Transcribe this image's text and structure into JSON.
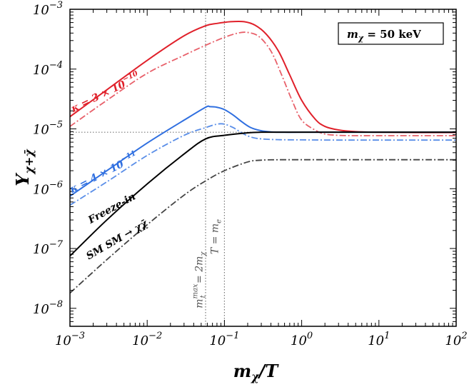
{
  "chart_data": {
    "type": "line",
    "xscale": "log",
    "yscale": "log",
    "xlim": [
      0.001,
      100
    ],
    "ylim": [
      5e-09,
      0.001
    ],
    "xlabel": "m_χ/T",
    "ylabel": "Y_{χ+χ̄}",
    "x_ticks": [
      {
        "value": 0.001,
        "base": "10",
        "exp": "−3"
      },
      {
        "value": 0.01,
        "base": "10",
        "exp": "−2"
      },
      {
        "value": 0.1,
        "base": "10",
        "exp": "−1"
      },
      {
        "value": 1,
        "base": "10",
        "exp": "0"
      },
      {
        "value": 10,
        "base": "10",
        "exp": "1"
      },
      {
        "value": 100,
        "base": "10",
        "exp": "2"
      }
    ],
    "y_ticks": [
      {
        "value": 1e-08,
        "base": "10",
        "exp": "−8"
      },
      {
        "value": 1e-07,
        "base": "10",
        "exp": "−7"
      },
      {
        "value": 1e-06,
        "base": "10",
        "exp": "−6"
      },
      {
        "value": 1e-05,
        "base": "10",
        "exp": "−5"
      },
      {
        "value": 0.0001,
        "base": "10",
        "exp": "−4"
      },
      {
        "value": 0.001,
        "base": "10",
        "exp": "−3"
      }
    ],
    "series": [
      {
        "name": "kappa-3e-10-solid",
        "color": "#e0202a",
        "dash": "solid",
        "x": [
          0.001,
          0.003,
          0.01,
          0.03,
          0.057,
          0.08,
          0.12,
          0.18,
          0.25,
          0.35,
          0.5,
          0.7,
          1.0,
          1.5,
          2.0,
          3.0,
          5.0,
          10,
          30,
          100
        ],
        "y": [
          1.6e-05,
          4.5e-05,
          0.00014,
          0.00036,
          0.00053,
          0.00058,
          0.00062,
          0.00062,
          0.00054,
          0.00038,
          0.0002,
          8e-05,
          3e-05,
          1.45e-05,
          1.1e-05,
          9.6e-06,
          9e-06,
          8.8e-06,
          8.7e-06,
          8.7e-06
        ]
      },
      {
        "name": "kappa-3e-10-dashdot",
        "color": "#e8606a",
        "dash": "dashdot",
        "x": [
          0.001,
          0.003,
          0.01,
          0.03,
          0.057,
          0.1,
          0.15,
          0.2,
          0.28,
          0.4,
          0.55,
          0.75,
          1.0,
          1.5,
          2.0,
          3.0,
          5.0,
          10,
          100
        ],
        "y": [
          1.1e-05,
          3e-05,
          8.5e-05,
          0.00017,
          0.00025,
          0.00034,
          0.0004,
          0.00041,
          0.00035,
          0.0002,
          8e-05,
          3e-05,
          1.4e-05,
          9.5e-06,
          8.2e-06,
          7.8e-06,
          7.7e-06,
          7.7e-06,
          7.7e-06
        ]
      },
      {
        "name": "kappa-4e-11-solid",
        "color": "#2f6fe0",
        "dash": "solid",
        "x": [
          0.001,
          0.003,
          0.01,
          0.03,
          0.057,
          0.065,
          0.08,
          0.1,
          0.13,
          0.17,
          0.22,
          0.3,
          0.4,
          0.6,
          1.0,
          3.0,
          10,
          100
        ],
        "y": [
          7.5e-07,
          2e-06,
          5.8e-06,
          1.4e-05,
          2.3e-05,
          2.35e-05,
          2.3e-05,
          2.1e-05,
          1.7e-05,
          1.3e-05,
          1.05e-05,
          9.3e-06,
          8.9e-06,
          8.8e-06,
          8.8e-06,
          8.8e-06,
          8.8e-06,
          8.8e-06
        ]
      },
      {
        "name": "kappa-4e-11-dashdot",
        "color": "#5a8ee8",
        "dash": "dashdot",
        "x": [
          0.001,
          0.003,
          0.01,
          0.03,
          0.057,
          0.08,
          0.1,
          0.13,
          0.17,
          0.22,
          0.3,
          0.5,
          1.0,
          3.0,
          10,
          100
        ],
        "y": [
          5.3e-07,
          1.3e-06,
          3.6e-06,
          7.8e-06,
          1.05e-05,
          1.2e-05,
          1.2e-05,
          1.05e-05,
          8.5e-06,
          7.3e-06,
          6.8e-06,
          6.6e-06,
          6.55e-06,
          6.5e-06,
          6.5e-06,
          6.5e-06
        ]
      },
      {
        "name": "freeze-in-solid",
        "color": "#000000",
        "dash": "solid",
        "x": [
          0.001,
          0.003,
          0.01,
          0.03,
          0.057,
          0.1,
          0.2,
          0.3,
          0.5,
          1.0,
          3.0,
          10,
          100
        ],
        "y": [
          7.5e-08,
          3e-07,
          1.2e-06,
          3.8e-06,
          6.8e-06,
          7.8e-06,
          8.6e-06,
          8.8e-06,
          8.8e-06,
          8.8e-06,
          8.8e-06,
          8.8e-06,
          8.8e-06
        ]
      },
      {
        "name": "sm-sm-dashdot",
        "color": "#444444",
        "dash": "dashdot",
        "x": [
          0.001,
          0.003,
          0.01,
          0.03,
          0.057,
          0.1,
          0.2,
          0.3,
          0.5,
          1.0,
          3.0,
          10,
          100
        ],
        "y": [
          1.8e-08,
          6.5e-08,
          2.5e-07,
          7.8e-07,
          1.35e-06,
          2e-06,
          2.8e-06,
          3e-06,
          3.05e-06,
          3.05e-06,
          3.05e-06,
          3.05e-06,
          3.05e-06
        ]
      }
    ],
    "reference_lines": [
      {
        "name": "y-observed",
        "orientation": "horizontal",
        "value": 8.8e-06,
        "color": "#777777"
      },
      {
        "name": "mt-max",
        "orientation": "vertical",
        "value": 0.057,
        "color": "#777777"
      },
      {
        "name": "t-me",
        "orientation": "vertical",
        "value": 0.1,
        "color": "#777777"
      }
    ],
    "annotations": [
      {
        "name": "kappa-3e-10-label",
        "text_main": "κ = 3 × 10",
        "text_exp": "−10",
        "color": "#e0202a",
        "x": 0.0011,
        "y": 1.9e-05,
        "angle": -26
      },
      {
        "name": "kappa-4e-11-label",
        "text_main": "κ = 4 × 10",
        "text_exp": "−11",
        "color": "#2f6fe0",
        "x": 0.00106,
        "y": 8.5e-07,
        "angle": -27
      },
      {
        "name": "freeze-in-label",
        "text_main": "Freeze-in",
        "text_exp": "",
        "color": "#000000",
        "x": 0.00185,
        "y": 2.6e-07,
        "angle": -29
      },
      {
        "name": "sm-sm-label",
        "text_main": "SM SM → χχ̄",
        "text_exp": "",
        "color": "#000000",
        "x": 0.00175,
        "y": 6.5e-08,
        "angle": -30
      },
      {
        "name": "mt-max-label",
        "text_main": "m",
        "text_exp": "max",
        "text_sub": "t",
        "text_tail": " = 2m",
        "text_tail_sub": "χ",
        "color": "#555555",
        "x": 0.052,
        "y": 1e-08,
        "angle": -90
      },
      {
        "name": "t-me-label",
        "text_main": "T = m",
        "text_exp": "",
        "text_sub": "e",
        "color": "#555555",
        "x": 0.083,
        "y": 8e-08,
        "angle": -90
      }
    ],
    "legend_box": {
      "text": "m_χ = 50 keV",
      "text_main": "m",
      "text_sub": "χ",
      "text_tail": " = 50 keV",
      "position": "top-right"
    }
  }
}
